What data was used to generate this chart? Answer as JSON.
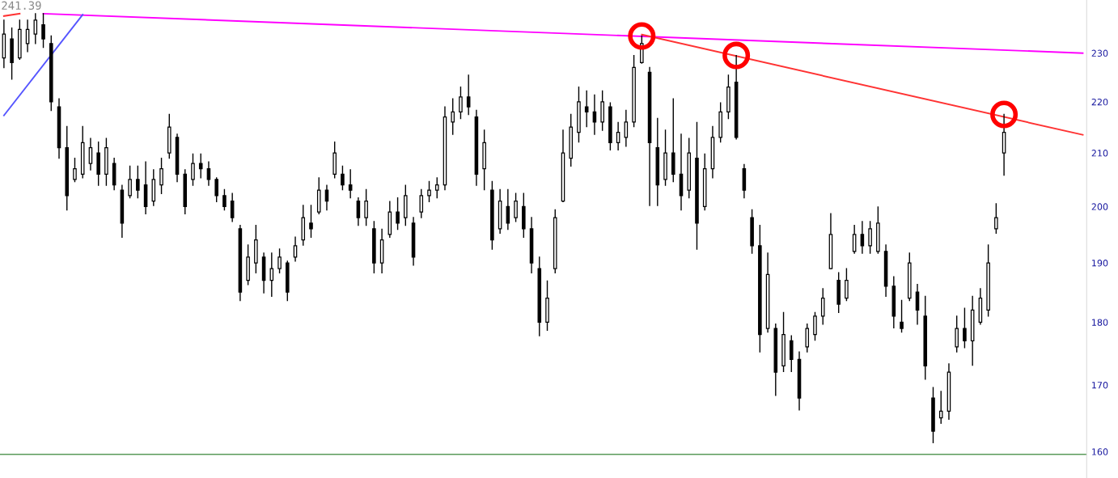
{
  "chart_data": {
    "type": "candlestick",
    "categories": [
      null,
      null,
      null,
      null,
      null,
      null,
      null,
      null,
      null,
      null,
      null,
      null,
      null,
      null,
      null,
      null,
      null,
      null,
      null,
      null,
      null,
      null,
      null,
      null,
      null,
      null,
      null,
      null,
      null,
      null,
      null,
      null,
      null,
      null,
      null,
      null,
      null,
      null,
      null,
      null,
      null,
      null,
      null,
      null,
      null,
      null,
      null,
      null,
      null,
      null,
      null,
      null,
      null,
      null,
      null,
      null,
      null,
      null,
      null,
      null,
      null,
      null,
      null,
      null,
      null,
      null,
      null,
      null,
      null,
      null,
      null,
      null,
      null,
      null,
      null,
      null,
      null,
      null,
      null,
      null,
      null,
      null,
      null,
      null,
      null,
      null,
      null,
      null,
      null,
      null,
      null,
      null,
      null,
      null,
      null,
      null,
      null,
      null,
      null,
      null,
      null,
      null,
      null,
      null,
      null,
      null,
      null,
      null,
      null,
      null,
      null,
      null,
      null,
      null,
      null,
      null,
      null,
      null,
      null,
      null,
      null,
      null,
      null,
      null,
      null,
      null,
      null,
      null,
      null,
      null,
      null,
      null,
      null,
      null,
      null,
      null,
      null,
      null
    ],
    "color": "#000000",
    "ohlc": [
      [
        229,
        237.0,
        227.0,
        234
      ],
      [
        233,
        235.3,
        224.6,
        228
      ],
      [
        229,
        237.0,
        228.7,
        235
      ],
      [
        232,
        237.0,
        230.3,
        235
      ],
      [
        234,
        238.4,
        232.0,
        237
      ],
      [
        236,
        238.4,
        231.2,
        233
      ],
      [
        232,
        233.6,
        218.3,
        220
      ],
      [
        219,
        220.6,
        209.0,
        211
      ],
      [
        211,
        215.1,
        199.4,
        202
      ],
      [
        205,
        209.0,
        204.6,
        207
      ],
      [
        206,
        215.1,
        205.3,
        212
      ],
      [
        208,
        212.8,
        206.8,
        211
      ],
      [
        210,
        212.1,
        203.9,
        206
      ],
      [
        206,
        212.8,
        203.9,
        211
      ],
      [
        208,
        209.0,
        203.1,
        204
      ],
      [
        203,
        203.9,
        194.5,
        197
      ],
      [
        202,
        207.5,
        201.6,
        205
      ],
      [
        205,
        207.5,
        201.6,
        203
      ],
      [
        204,
        208.3,
        198.7,
        200
      ],
      [
        201,
        206.8,
        200.2,
        205
      ],
      [
        204,
        209.0,
        202.4,
        207
      ],
      [
        210,
        217.5,
        209.0,
        215
      ],
      [
        213,
        213.6,
        204.6,
        206
      ],
      [
        206,
        206.8,
        198.7,
        200
      ],
      [
        205,
        209.8,
        203.9,
        208
      ],
      [
        208,
        209.8,
        205.3,
        207
      ],
      [
        207,
        208.3,
        203.9,
        205
      ],
      [
        205,
        205.3,
        200.9,
        202
      ],
      [
        202,
        203.1,
        199.4,
        200
      ],
      [
        201,
        202.4,
        197.3,
        198
      ],
      [
        196,
        196.6,
        183.6,
        185
      ],
      [
        187,
        193.1,
        186.3,
        191
      ],
      [
        190,
        196.6,
        188.3,
        194
      ],
      [
        191,
        191.7,
        184.9,
        187
      ],
      [
        187,
        191.7,
        184.3,
        189
      ],
      [
        189,
        192.4,
        188.3,
        191
      ],
      [
        190,
        190.3,
        183.6,
        185
      ],
      [
        191,
        194.5,
        190.3,
        193
      ],
      [
        194,
        200.2,
        193.1,
        198
      ],
      [
        197,
        200.2,
        194.5,
        196
      ],
      [
        199,
        205.3,
        198.7,
        203
      ],
      [
        203,
        203.9,
        199.4,
        201
      ],
      [
        206,
        212.1,
        205.3,
        210
      ],
      [
        206,
        207.5,
        203.1,
        204
      ],
      [
        204,
        206.8,
        201.6,
        203
      ],
      [
        201,
        201.6,
        196.6,
        198
      ],
      [
        198,
        203.1,
        196.6,
        201
      ],
      [
        196,
        197.3,
        188.3,
        190
      ],
      [
        190,
        195.9,
        188.3,
        194
      ],
      [
        195,
        200.9,
        194.5,
        199
      ],
      [
        199,
        201.6,
        195.9,
        197
      ],
      [
        198,
        203.9,
        196.6,
        202
      ],
      [
        197,
        198.0,
        189.6,
        191
      ],
      [
        199,
        203.1,
        198.0,
        202
      ],
      [
        202,
        204.6,
        200.9,
        203
      ],
      [
        203,
        205.3,
        201.6,
        204
      ],
      [
        204,
        219.0,
        203.1,
        217
      ],
      [
        216,
        220.6,
        213.6,
        218
      ],
      [
        218,
        223.0,
        216.7,
        221
      ],
      [
        221,
        225.4,
        217.5,
        219
      ],
      [
        217,
        218.3,
        203.9,
        206
      ],
      [
        207,
        214.4,
        203.1,
        212
      ],
      [
        203,
        204.6,
        192.4,
        194
      ],
      [
        196,
        203.1,
        195.2,
        201
      ],
      [
        200,
        203.1,
        195.9,
        197
      ],
      [
        198,
        202.4,
        197.3,
        201
      ],
      [
        200,
        202.4,
        194.5,
        196
      ],
      [
        196,
        198.0,
        188.3,
        190
      ],
      [
        189,
        191.0,
        177.8,
        180
      ],
      [
        180,
        186.9,
        178.7,
        184
      ],
      [
        189,
        199.4,
        188.3,
        198
      ],
      [
        201,
        214.4,
        200.9,
        210
      ],
      [
        209,
        217.5,
        207.5,
        215
      ],
      [
        214,
        223.0,
        212.1,
        220
      ],
      [
        219,
        222.2,
        215.1,
        218
      ],
      [
        218,
        221.4,
        213.6,
        216
      ],
      [
        216,
        222.2,
        214.4,
        220
      ],
      [
        219,
        219.8,
        210.6,
        212
      ],
      [
        212,
        215.9,
        210.6,
        214
      ],
      [
        213,
        218.3,
        211.3,
        216
      ],
      [
        216,
        229.5,
        215.1,
        227
      ],
      [
        228,
        233.6,
        227.9,
        232
      ],
      [
        226,
        227.0,
        200.2,
        212
      ],
      [
        211,
        216.7,
        200.2,
        204
      ],
      [
        205,
        214.4,
        203.9,
        210
      ],
      [
        210,
        220.6,
        204.6,
        206
      ],
      [
        206,
        213.6,
        199.4,
        202
      ],
      [
        203,
        212.8,
        201.6,
        210
      ],
      [
        209,
        215.9,
        192.4,
        197
      ],
      [
        200,
        209.8,
        199.4,
        207
      ],
      [
        207,
        215.1,
        205.3,
        213
      ],
      [
        213,
        219.8,
        212.1,
        218
      ],
      [
        218,
        225.4,
        216.7,
        223
      ],
      [
        224,
        229.5,
        212.7,
        213
      ],
      [
        207,
        207.8,
        201.6,
        203
      ],
      [
        198,
        199.4,
        191.7,
        193
      ],
      [
        193,
        196.6,
        175.2,
        178
      ],
      [
        179,
        191.7,
        178.4,
        188
      ],
      [
        179,
        179.7,
        168.4,
        172
      ],
      [
        173,
        181.6,
        172.1,
        178
      ],
      [
        177,
        177.8,
        172.1,
        174
      ],
      [
        174,
        175.2,
        166.2,
        168
      ],
      [
        176,
        179.7,
        175.2,
        179
      ],
      [
        178,
        181.6,
        177.1,
        181
      ],
      [
        181,
        185.6,
        179.7,
        184
      ],
      [
        189,
        198.7,
        189.0,
        195
      ],
      [
        187,
        188.3,
        181.6,
        183
      ],
      [
        184,
        189.0,
        183.6,
        187
      ],
      [
        192,
        196.6,
        191.7,
        195
      ],
      [
        195,
        197.3,
        191.7,
        193
      ],
      [
        193,
        197.3,
        191.7,
        196
      ],
      [
        192,
        199.9,
        191.7,
        197
      ],
      [
        192,
        193.1,
        184.3,
        186
      ],
      [
        186,
        187.6,
        179.1,
        181
      ],
      [
        180,
        183.6,
        178.4,
        179
      ],
      [
        184,
        191.7,
        183.6,
        190
      ],
      [
        185,
        186.3,
        179.7,
        182
      ],
      [
        181,
        184.3,
        170.9,
        173
      ],
      [
        168,
        169.6,
        161.3,
        163
      ],
      [
        165,
        169.0,
        164.2,
        166
      ],
      [
        166,
        173.3,
        164.8,
        172
      ],
      [
        176,
        181.0,
        175.2,
        179
      ],
      [
        179,
        182.3,
        175.9,
        177
      ],
      [
        177,
        184.3,
        173.1,
        182
      ],
      [
        180,
        185.6,
        179.7,
        184
      ],
      [
        182,
        193.1,
        181.0,
        190
      ],
      [
        196,
        200.5,
        195.2,
        198
      ],
      [
        210,
        217.5,
        205.8,
        214
      ],
      null,
      null,
      null,
      null,
      null,
      null,
      null,
      null,
      null,
      null
    ],
    "series": [
      {
        "type": "line",
        "color": "#ff00ff",
        "values": [
          null,
          null,
          null,
          null,
          null,
          238.4,
          null,
          null,
          null,
          null,
          null,
          null,
          null,
          null,
          null,
          null,
          null,
          null,
          null,
          null,
          null,
          null,
          null,
          null,
          null,
          null,
          null,
          null,
          null,
          null,
          null,
          null,
          null,
          null,
          null,
          null,
          null,
          null,
          null,
          null,
          null,
          null,
          null,
          null,
          null,
          null,
          null,
          null,
          null,
          null,
          null,
          null,
          null,
          null,
          null,
          null,
          null,
          null,
          null,
          null,
          null,
          null,
          null,
          null,
          null,
          null,
          null,
          null,
          null,
          null,
          null,
          null,
          null,
          null,
          null,
          null,
          null,
          null,
          null,
          null,
          null,
          null,
          null,
          null,
          null,
          null,
          null,
          null,
          null,
          null,
          null,
          null,
          null,
          null,
          null,
          null,
          null,
          null,
          null,
          null,
          null,
          null,
          null,
          null,
          null,
          null,
          null,
          null,
          null,
          null,
          null,
          null,
          null,
          null,
          null,
          null,
          null,
          null,
          null,
          null,
          null,
          null,
          null,
          null,
          null,
          null,
          null,
          null,
          null,
          null,
          null,
          null,
          null,
          null,
          null,
          null,
          null,
          230.0
        ]
      },
      {
        "type": "line",
        "color": "#ff3333",
        "values": [
          null,
          null,
          null,
          null,
          null,
          null,
          null,
          null,
          null,
          null,
          null,
          null,
          null,
          null,
          null,
          null,
          null,
          null,
          null,
          null,
          null,
          null,
          null,
          null,
          null,
          null,
          null,
          null,
          null,
          null,
          null,
          null,
          null,
          null,
          null,
          null,
          null,
          null,
          null,
          null,
          null,
          null,
          null,
          null,
          null,
          null,
          null,
          null,
          null,
          null,
          null,
          null,
          null,
          null,
          null,
          null,
          null,
          null,
          null,
          null,
          null,
          null,
          null,
          null,
          null,
          null,
          null,
          null,
          null,
          null,
          null,
          null,
          null,
          null,
          null,
          null,
          null,
          null,
          null,
          null,
          null,
          233.9,
          null,
          null,
          null,
          null,
          null,
          null,
          null,
          null,
          null,
          null,
          null,
          null,
          null,
          null,
          null,
          null,
          null,
          null,
          null,
          null,
          null,
          null,
          null,
          null,
          null,
          null,
          null,
          null,
          null,
          null,
          null,
          null,
          null,
          null,
          null,
          null,
          null,
          null,
          null,
          null,
          null,
          null,
          null,
          null,
          null,
          null,
          null,
          null,
          null,
          null,
          null,
          null,
          null,
          null,
          null,
          213.5
        ]
      },
      {
        "type": "line",
        "color": "#ff3333",
        "values": [
          237.9,
          null,
          238.4,
          null,
          null,
          null,
          null,
          null,
          null,
          null,
          null,
          null,
          null,
          null,
          null,
          null,
          null,
          null,
          null,
          null,
          null,
          null,
          null,
          null,
          null,
          null,
          null,
          null,
          null,
          null,
          null,
          null,
          null,
          null,
          null,
          null,
          null,
          null,
          null,
          null,
          null,
          null,
          null,
          null,
          null,
          null,
          null,
          null,
          null,
          null,
          null,
          null,
          null,
          null,
          null,
          null,
          null,
          null,
          null,
          null,
          null,
          null,
          null,
          null,
          null,
          null,
          null,
          null,
          null,
          null,
          null,
          null,
          null,
          null,
          null,
          null,
          null,
          null,
          null,
          null,
          null,
          null,
          null,
          null,
          null,
          null,
          null,
          null,
          null,
          null,
          null,
          null,
          null,
          null,
          null,
          null,
          null,
          null,
          null,
          null,
          null,
          null,
          null,
          null,
          null,
          null,
          null,
          null,
          null,
          null,
          null,
          null,
          null,
          null,
          null,
          null,
          null,
          null,
          null,
          null,
          null,
          null,
          null,
          null,
          null,
          null,
          null,
          null,
          null,
          null,
          null,
          null,
          null,
          null,
          null,
          null,
          null,
          null
        ]
      },
      {
        "type": "line",
        "color": "#5555ff",
        "values": [
          217.3,
          null,
          null,
          null,
          null,
          null,
          null,
          null,
          null,
          null,
          238.2,
          null,
          null,
          null,
          null,
          null,
          null,
          null,
          null,
          null,
          null,
          null,
          null,
          null,
          null,
          null,
          null,
          null,
          null,
          null,
          null,
          null,
          null,
          null,
          null,
          null,
          null,
          null,
          null,
          null,
          null,
          null,
          null,
          null,
          null,
          null,
          null,
          null,
          null,
          null,
          null,
          null,
          null,
          null,
          null,
          null,
          null,
          null,
          null,
          null,
          null,
          null,
          null,
          null,
          null,
          null,
          null,
          null,
          null,
          null,
          null,
          null,
          null,
          null,
          null,
          null,
          null,
          null,
          null,
          null,
          null,
          null,
          null,
          null,
          null,
          null,
          null,
          null,
          null,
          null,
          null,
          null,
          null,
          null,
          null,
          null,
          null,
          null,
          null,
          null,
          null,
          null,
          null,
          null,
          null,
          null,
          null,
          null,
          null,
          null,
          null,
          null,
          null,
          null,
          null,
          null,
          null,
          null,
          null,
          null,
          null,
          null,
          null,
          null,
          null,
          null,
          null,
          null,
          null,
          null,
          null,
          null,
          null,
          null,
          null,
          null,
          null,
          null
        ]
      },
      {
        "type": "scatter",
        "marker": "circle",
        "color": "#ff0000",
        "values": [
          null,
          null,
          null,
          null,
          null,
          null,
          null,
          null,
          null,
          null,
          null,
          null,
          null,
          null,
          null,
          null,
          null,
          null,
          null,
          null,
          null,
          null,
          null,
          null,
          null,
          null,
          null,
          null,
          null,
          null,
          null,
          null,
          null,
          null,
          null,
          null,
          null,
          null,
          null,
          null,
          null,
          null,
          null,
          null,
          null,
          null,
          null,
          null,
          null,
          null,
          null,
          null,
          null,
          null,
          null,
          null,
          null,
          null,
          null,
          null,
          null,
          null,
          null,
          null,
          null,
          null,
          null,
          null,
          null,
          null,
          null,
          null,
          null,
          null,
          null,
          null,
          null,
          null,
          null,
          null,
          null,
          233.6,
          null,
          null,
          null,
          null,
          null,
          null,
          null,
          null,
          null,
          null,
          null,
          229.5,
          null,
          null,
          null,
          null,
          null,
          null,
          null,
          null,
          null,
          null,
          null,
          null,
          null,
          null,
          null,
          null,
          null,
          null,
          null,
          null,
          null,
          null,
          null,
          null,
          null,
          null,
          null,
          null,
          null,
          null,
          null,
          null,
          null,
          217.5,
          null,
          null,
          null,
          null,
          null,
          null,
          null,
          null,
          null,
          null
        ]
      }
    ],
    "log": "y",
    "ylim": [
      156.2,
      241.39
    ],
    "yticks": [
      160,
      170,
      180,
      190,
      200,
      210,
      220,
      230
    ],
    "ref_lines": [
      {
        "axis": "y",
        "value": 159.6,
        "color": "#5a9a5a"
      }
    ],
    "tick_labels": "y",
    "annotations": [
      "241.39"
    ]
  }
}
